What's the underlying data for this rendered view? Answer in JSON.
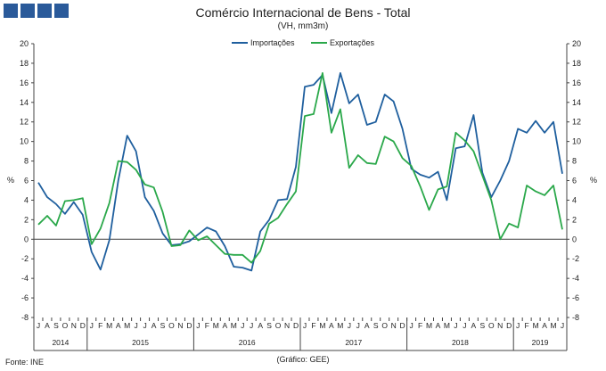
{
  "header": {
    "logo_colors": [
      "#2a5a9a",
      "#2a5a9a",
      "#2a5a9a",
      "#2a5a9a"
    ]
  },
  "chart_data": {
    "type": "line",
    "title": "Comércio Internacional de Bens - Total",
    "subtitle": "(VH, mm3m)",
    "ylabel": "%",
    "ylim": [
      -8,
      20
    ],
    "yticks": [
      -8,
      -6,
      -4,
      -2,
      0,
      2,
      4,
      6,
      8,
      10,
      12,
      14,
      16,
      18,
      20
    ],
    "grid": false,
    "legend_position": "top-center",
    "month_labels": [
      "J",
      "A",
      "S",
      "O",
      "N",
      "D",
      "J",
      "F",
      "M",
      "A",
      "M",
      "J",
      "J",
      "A",
      "S",
      "O",
      "N",
      "D",
      "J",
      "F",
      "M",
      "A",
      "M",
      "J",
      "J",
      "A",
      "S",
      "O",
      "N",
      "D",
      "J",
      "F",
      "M",
      "A",
      "M",
      "J",
      "J",
      "A",
      "S",
      "O",
      "N",
      "D",
      "J",
      "F",
      "M",
      "A",
      "M",
      "J",
      "J",
      "A",
      "S",
      "O",
      "N",
      "D",
      "J",
      "F",
      "M",
      "A",
      "M",
      "J"
    ],
    "years": [
      {
        "label": "2014",
        "start": 0,
        "end": 6
      },
      {
        "label": "2015",
        "start": 6,
        "end": 18
      },
      {
        "label": "2016",
        "start": 18,
        "end": 30
      },
      {
        "label": "2017",
        "start": 30,
        "end": 42
      },
      {
        "label": "2018",
        "start": 42,
        "end": 54
      },
      {
        "label": "2019",
        "start": 54,
        "end": 60
      }
    ],
    "series": [
      {
        "name": "Importações",
        "color": "#1f5f9e",
        "values": [
          5.8,
          4.3,
          3.6,
          2.6,
          3.8,
          2.5,
          -1.3,
          -3.1,
          -0.1,
          6.0,
          10.6,
          9.0,
          4.3,
          2.9,
          0.6,
          -0.6,
          -0.5,
          -0.2,
          0.5,
          1.2,
          0.8,
          -0.7,
          -2.8,
          -2.9,
          -3.2,
          0.8,
          2.0,
          4.0,
          4.1,
          7.4,
          15.6,
          15.8,
          16.8,
          12.9,
          17.0,
          13.9,
          14.8,
          11.7,
          12.0,
          14.8,
          14.1,
          11.3,
          7.2,
          6.6,
          6.3,
          6.9,
          4.0,
          9.3,
          9.5,
          12.7,
          6.8,
          4.3,
          6.0,
          8.0,
          11.3,
          10.9,
          12.1,
          10.9,
          12.0,
          6.7
        ]
      },
      {
        "name": "Exportações",
        "color": "#2aa84a",
        "values": [
          1.5,
          2.4,
          1.4,
          3.9,
          4.0,
          4.2,
          -0.5,
          1.1,
          3.7,
          8.0,
          7.9,
          7.1,
          5.6,
          5.3,
          2.8,
          -0.7,
          -0.6,
          0.9,
          -0.1,
          0.3,
          -0.6,
          -1.5,
          -1.6,
          -1.6,
          -2.4,
          -1.2,
          1.6,
          2.2,
          3.6,
          4.9,
          12.6,
          12.8,
          17.0,
          10.9,
          13.3,
          7.3,
          8.6,
          7.8,
          7.7,
          10.5,
          10.0,
          8.3,
          7.5,
          5.4,
          3.0,
          5.1,
          5.4,
          10.9,
          10.1,
          9.0,
          6.5,
          4.0,
          0.0,
          1.6,
          1.2,
          5.5,
          4.9,
          4.5,
          5.5,
          1.0
        ]
      }
    ]
  },
  "footer": {
    "source": "Fonte: INE",
    "credit": "(Gráfico: GEE)"
  }
}
